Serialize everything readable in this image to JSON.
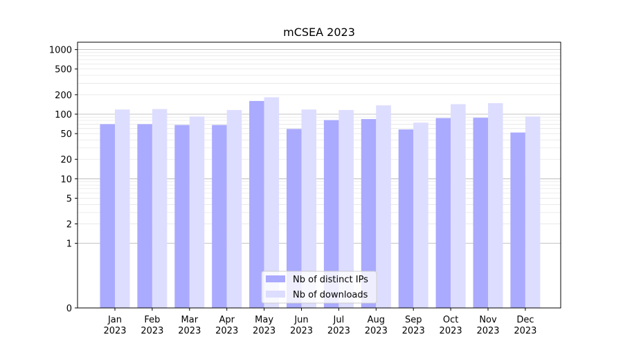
{
  "chart_data": {
    "type": "bar",
    "title": "mCSEA 2023",
    "xlabel": "",
    "ylabel": "",
    "y_scale": "symlog",
    "ylim": [
      0,
      1300
    ],
    "yticks": [
      0,
      1,
      2,
      5,
      10,
      20,
      50,
      100,
      200,
      500,
      1000
    ],
    "ytick_labels": [
      "0",
      "1",
      "2",
      "5",
      "10",
      "20",
      "50",
      "100",
      "200",
      "500",
      "1000"
    ],
    "categories": [
      [
        "Jan",
        "2023"
      ],
      [
        "Feb",
        "2023"
      ],
      [
        "Mar",
        "2023"
      ],
      [
        "Apr",
        "2023"
      ],
      [
        "May",
        "2023"
      ],
      [
        "Jun",
        "2023"
      ],
      [
        "Jul",
        "2023"
      ],
      [
        "Aug",
        "2023"
      ],
      [
        "Sep",
        "2023"
      ],
      [
        "Oct",
        "2023"
      ],
      [
        "Nov",
        "2023"
      ],
      [
        "Dec",
        "2023"
      ]
    ],
    "series": [
      {
        "name": "Nb of distinct IPs",
        "color": "#aaaaff",
        "values": [
          70,
          70,
          68,
          68,
          160,
          59,
          81,
          84,
          58,
          87,
          88,
          52
        ]
      },
      {
        "name": "Nb of downloads",
        "color": "#ddddff",
        "values": [
          118,
          120,
          92,
          116,
          183,
          118,
          116,
          137,
          74,
          143,
          148,
          92
        ]
      }
    ],
    "grid": true,
    "legend_position": "lower center"
  }
}
